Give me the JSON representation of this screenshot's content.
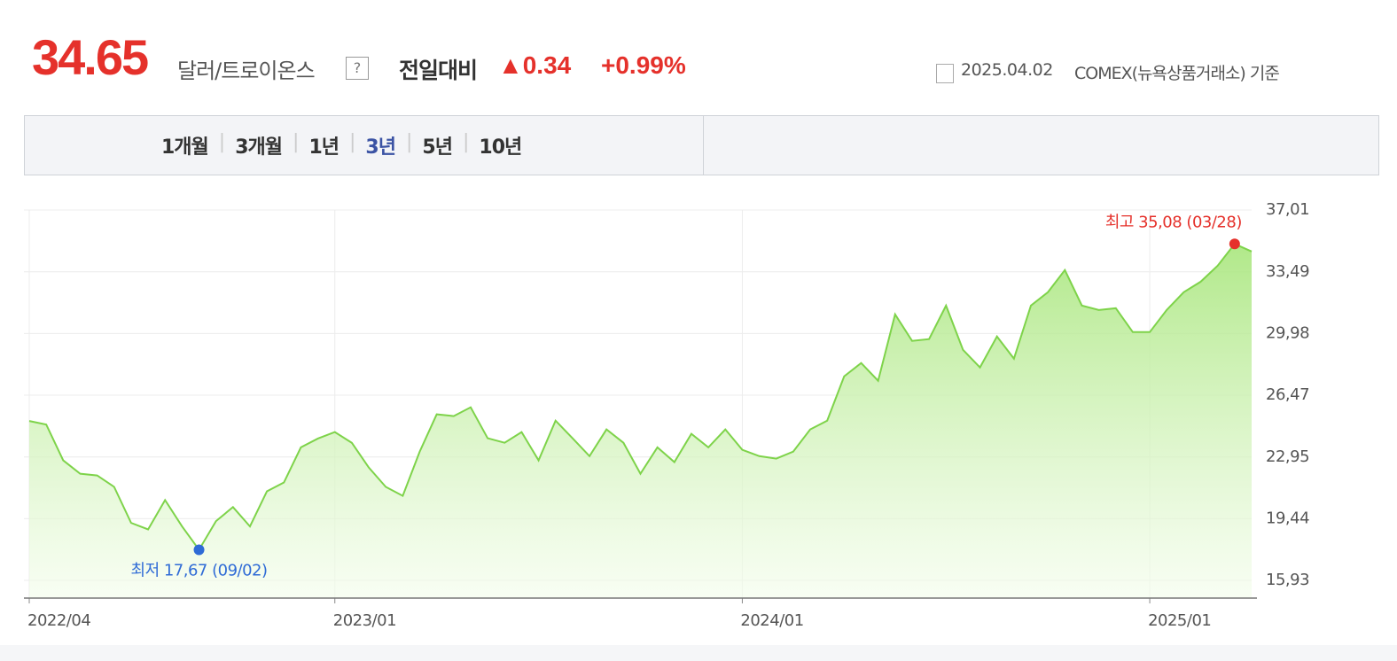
{
  "header": {
    "price": "34.65",
    "unit": "달러/트로이온스",
    "help": "?",
    "change_label": "전일대비",
    "change": "▲0.34",
    "change_pct": "+0.99%",
    "date": "2025.04.02",
    "source": "COMEX(뉴욕상품거래소) 기준"
  },
  "tabs": {
    "items": [
      "1개월",
      "3개월",
      "1년",
      "3년",
      "5년",
      "10년"
    ],
    "selected": "3년"
  },
  "chart_data": {
    "type": "area",
    "categories": [
      "2022/04",
      null,
      null,
      null,
      null,
      null,
      null,
      null,
      null,
      null,
      null,
      null,
      null,
      null,
      null,
      null,
      null,
      null,
      "2023/01",
      null,
      null,
      null,
      null,
      null,
      null,
      null,
      null,
      null,
      null,
      null,
      null,
      null,
      null,
      null,
      null,
      null,
      null,
      null,
      null,
      null,
      null,
      null,
      "2024/01",
      null,
      null,
      null,
      null,
      null,
      null,
      null,
      null,
      null,
      null,
      null,
      null,
      null,
      null,
      null,
      null,
      null,
      null,
      null,
      null,
      null,
      null,
      null,
      "2025/01",
      null,
      null,
      null,
      null,
      null,
      null
    ],
    "series": [
      {
        "color": "#7ed34a",
        "values": [
          25.0,
          24.8,
          22.76,
          22.0,
          21.9,
          21.25,
          19.2,
          18.83,
          20.5,
          19.0,
          17.67,
          19.3,
          20.1,
          19.0,
          21.0,
          21.5,
          23.5,
          24.0,
          24.37,
          23.76,
          22.35,
          21.25,
          20.74,
          23.26,
          25.38,
          25.28,
          25.78,
          24.02,
          23.76,
          24.37,
          22.76,
          25.02,
          24.02,
          23.0,
          24.52,
          23.76,
          22.0,
          23.5,
          22.66,
          24.27,
          23.5,
          24.52,
          23.36,
          23.0,
          22.86,
          23.26,
          24.52,
          25.02,
          27.54,
          28.3,
          27.29,
          31.07,
          29.56,
          29.66,
          31.57,
          29.05,
          28.05,
          29.81,
          28.55,
          31.57,
          32.33,
          33.59,
          31.57,
          31.32,
          31.42,
          30.06,
          30.06,
          31.32,
          32.33,
          32.93,
          33.84,
          35.08,
          34.65
        ]
      }
    ],
    "ylim": [
      14.92,
      37.01
    ],
    "yticks": [
      {
        "value": 15.93,
        "label": "15,93"
      },
      {
        "value": 19.44,
        "label": "19,44"
      },
      {
        "value": 22.95,
        "label": "22,95"
      },
      {
        "value": 26.47,
        "label": "26,47"
      },
      {
        "value": 29.98,
        "label": "29,98"
      },
      {
        "value": 33.49,
        "label": "33,49"
      },
      {
        "value": 37.01,
        "label": "37,01"
      }
    ],
    "grid": true,
    "high": {
      "label": "최고 35,08 (03/28)",
      "value": 35.08,
      "color": "#e5312b"
    },
    "low": {
      "label": "최저 17,67 (09/02)",
      "value": 17.67,
      "color": "#2f6bd6"
    }
  }
}
